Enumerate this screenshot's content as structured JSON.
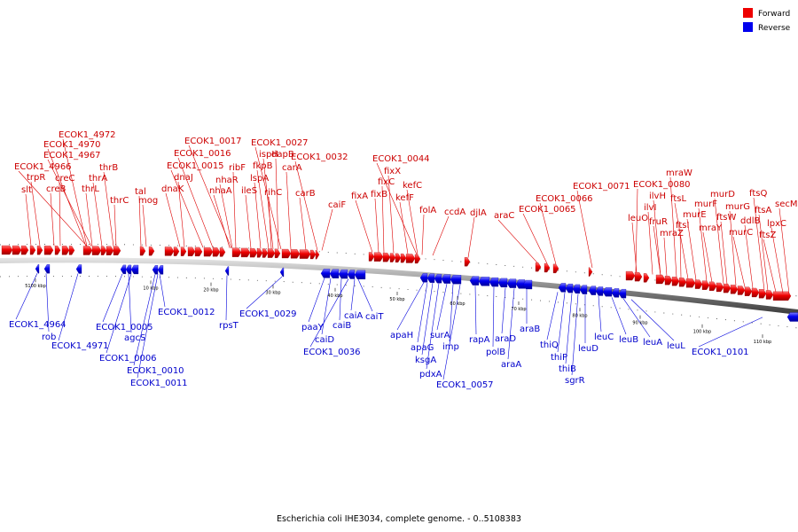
{
  "caption": "Escherichia coli IHE3034, complete genome. - 0..5108383",
  "legend": [
    {
      "label": "Forward",
      "color": "#ee0000"
    },
    {
      "label": "Reverse",
      "color": "#0000ee"
    }
  ],
  "ticks": [
    "5100 kbp",
    "10 kbp",
    "20 kbp",
    "30 kbp",
    "40 kbp",
    "50 kbp",
    "60 kbp",
    "70 kbp",
    "80 kbp",
    "90 kbp",
    "100 kbp",
    "110 kbp"
  ],
  "forward_labels": [
    "ECOK1_4972",
    "ECOK1_4970",
    "ECOK1_4967",
    "ECOK1_4966",
    "trpR",
    "slt",
    "creC",
    "creB",
    "thrB",
    "thrA",
    "thrL",
    "thrC",
    "tal",
    "mog",
    "dnaK",
    "dnaJ",
    "ECOK1_0017",
    "ECOK1_0016",
    "ECOK1_0015",
    "ribF",
    "nhaR",
    "nhaA",
    "ileS",
    "ECOK1_0027",
    "ispH",
    "fkpB",
    "lspA",
    "dapB",
    "rihC",
    "carA",
    "ECOK1_0032",
    "carB",
    "caiF",
    "ECOK1_0044",
    "fixX",
    "fixC",
    "fixB",
    "fixA",
    "kefC",
    "kefF",
    "folA",
    "ccdA",
    "djlA",
    "araC",
    "ECOK1_0066",
    "ECOK1_0065",
    "ECOK1_0071",
    "mraW",
    "ECOK1_0080",
    "ilvH",
    "ilvI",
    "leuO",
    "ftsL",
    "fruR",
    "mraZ",
    "ftsI",
    "murE",
    "murD",
    "murF",
    "mraY",
    "ftsW",
    "murG",
    "murC",
    "ftsQ",
    "ddlB",
    "ftsA",
    "ftsZ",
    "lpxC",
    "secM"
  ],
  "reverse_labels": [
    "ECOK1_4964",
    "rob",
    "ECOK1_4971",
    "ECOK1_0005",
    "agcS",
    "ECOK1_0006",
    "ECOK1_0010",
    "ECOK1_0011",
    "ECOK1_0012",
    "rpsT",
    "ECOK1_0029",
    "paaY",
    "caiD",
    "caiB",
    "ECOK1_0036",
    "caiA",
    "caiT",
    "apaH",
    "apaG",
    "ksgA",
    "pdxA",
    "surA",
    "imp",
    "ECOK1_0057",
    "rapA",
    "polB",
    "araD",
    "araA",
    "araB",
    "thiQ",
    "thiP",
    "thiB",
    "sgrR",
    "leuD",
    "leuC",
    "leuB",
    "leuA",
    "leuL",
    "ECOK1_0101"
  ]
}
